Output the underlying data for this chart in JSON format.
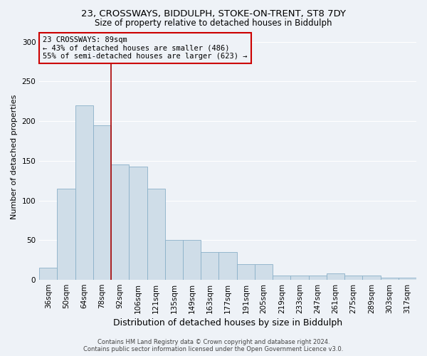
{
  "title1": "23, CROSSWAYS, BIDDULPH, STOKE-ON-TRENT, ST8 7DY",
  "title2": "Size of property relative to detached houses in Biddulph",
  "xlabel": "Distribution of detached houses by size in Biddulph",
  "ylabel": "Number of detached properties",
  "categories": [
    "36sqm",
    "50sqm",
    "64sqm",
    "78sqm",
    "92sqm",
    "106sqm",
    "121sqm",
    "135sqm",
    "149sqm",
    "163sqm",
    "177sqm",
    "191sqm",
    "205sqm",
    "219sqm",
    "233sqm",
    "247sqm",
    "261sqm",
    "275sqm",
    "289sqm",
    "303sqm",
    "317sqm"
  ],
  "values": [
    15,
    115,
    220,
    195,
    145,
    143,
    115,
    50,
    50,
    35,
    35,
    20,
    20,
    5,
    5,
    5,
    8,
    5,
    5,
    3,
    3
  ],
  "bar_color": "#cfdde8",
  "bar_edge_color": "#8ab0c8",
  "vline_x_idx": 3.5,
  "vline_color": "#aa0000",
  "annotation_title": "23 CROSSWAYS: 89sqm",
  "annotation_line1": "← 43% of detached houses are smaller (486)",
  "annotation_line2": "55% of semi-detached houses are larger (623) →",
  "annotation_box_color": "#cc0000",
  "footer1": "Contains HM Land Registry data © Crown copyright and database right 2024.",
  "footer2": "Contains public sector information licensed under the Open Government Licence v3.0.",
  "ylim": [
    0,
    310
  ],
  "yticks": [
    0,
    50,
    100,
    150,
    200,
    250,
    300
  ],
  "background_color": "#eef2f7",
  "grid_color": "#ffffff",
  "title1_fontsize": 9.5,
  "title2_fontsize": 8.5,
  "xlabel_fontsize": 9,
  "ylabel_fontsize": 8,
  "tick_fontsize": 7.5,
  "footer_fontsize": 6,
  "annotation_fontsize": 7.5
}
